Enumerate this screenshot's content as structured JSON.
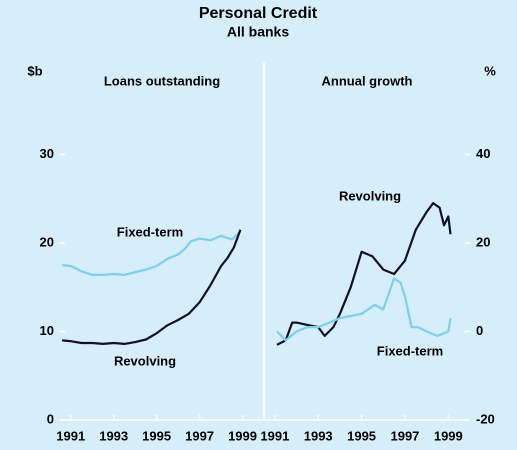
{
  "title": "Personal Credit",
  "subtitle": "All banks",
  "chart_data": [
    {
      "type": "line",
      "panel_title": "Loans outstanding",
      "y_unit": "$b",
      "yaxis_side": "left",
      "xlim": [
        1990.5,
        2000
      ],
      "xticks": [
        1991,
        1993,
        1995,
        1997,
        1999
      ],
      "ylim": [
        0,
        40
      ],
      "yticks": [
        0,
        10,
        20,
        30
      ],
      "series": [
        {
          "name": "Fixed-term",
          "color": "#79d0f2",
          "x": [
            1990.6,
            1991,
            1991.5,
            1992,
            1992.5,
            1993,
            1993.5,
            1994,
            1994.5,
            1995,
            1995.5,
            1996,
            1996.3,
            1996.6,
            1997,
            1997.5,
            1998,
            1998.5,
            1998.9
          ],
          "values": [
            17.5,
            17.4,
            16.8,
            16.4,
            16.4,
            16.5,
            16.4,
            16.7,
            17,
            17.4,
            18.2,
            18.7,
            19.3,
            20.2,
            20.5,
            20.3,
            20.8,
            20.4,
            21.3
          ]
        },
        {
          "name": "Revolving",
          "color": "#111122",
          "x": [
            1990.6,
            1991,
            1991.5,
            1992,
            1992.5,
            1993,
            1993.5,
            1994,
            1994.5,
            1995,
            1995.5,
            1996,
            1996.5,
            1997,
            1997.5,
            1998,
            1998.3,
            1998.6,
            1998.9
          ],
          "values": [
            9,
            8.9,
            8.7,
            8.7,
            8.6,
            8.7,
            8.6,
            8.8,
            9.1,
            9.8,
            10.7,
            11.3,
            12,
            13.3,
            15.2,
            17.4,
            18.3,
            19.5,
            21.5
          ]
        }
      ]
    },
    {
      "type": "line",
      "panel_title": "Annual growth",
      "y_unit": "%",
      "yaxis_side": "right",
      "xlim": [
        1990.5,
        2000
      ],
      "xticks": [
        1991,
        1993,
        1995,
        1997,
        1999
      ],
      "ylim": [
        -20,
        60
      ],
      "yticks": [
        -20,
        0,
        20,
        40
      ],
      "series": [
        {
          "name": "Revolving",
          "color": "#111122",
          "x": [
            1991.1,
            1991.5,
            1991.8,
            1992,
            1992.5,
            1993,
            1993.3,
            1993.7,
            1994,
            1994.5,
            1995,
            1995.5,
            1996,
            1996.5,
            1997,
            1997.5,
            1998,
            1998.3,
            1998.6,
            1998.8,
            1999,
            1999.1
          ],
          "values": [
            -3,
            -2,
            2,
            2,
            1.5,
            1,
            -1,
            1,
            4,
            10,
            18,
            17,
            14,
            13,
            16,
            23,
            27,
            29,
            28,
            24,
            26,
            22
          ]
        },
        {
          "name": "Fixed-term",
          "color": "#79d0f2",
          "x": [
            1991.1,
            1991.5,
            1992,
            1992.5,
            1993,
            1993.5,
            1994,
            1994.5,
            1995,
            1995.6,
            1996,
            1996.5,
            1996.8,
            1997,
            1997.3,
            1997.6,
            1998,
            1998.5,
            1999,
            1999.1
          ],
          "values": [
            0,
            -2,
            0,
            1,
            1,
            2,
            3,
            3.5,
            4,
            6,
            5,
            12,
            11,
            8,
            1,
            1,
            0,
            -1,
            0,
            3
          ]
        }
      ]
    }
  ]
}
